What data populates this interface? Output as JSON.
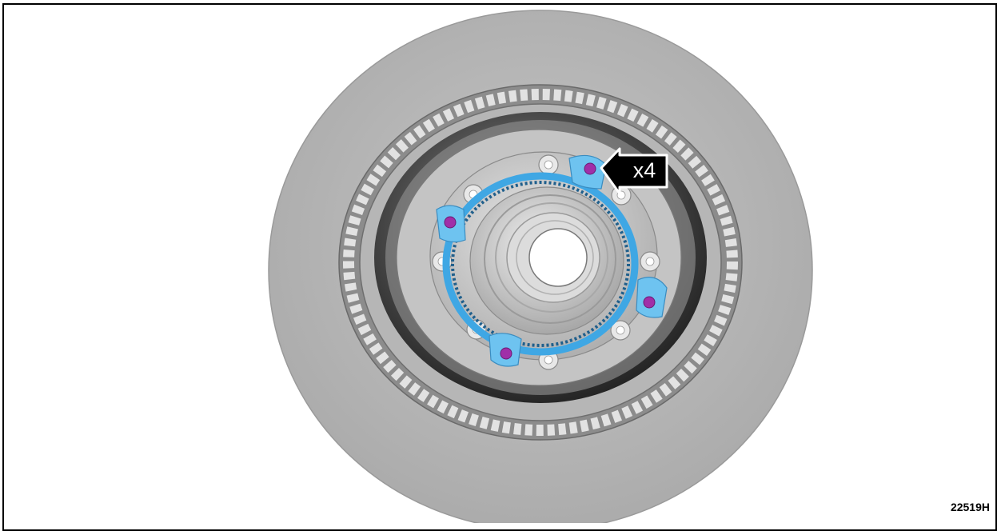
{
  "figure": {
    "callout_label": "x4",
    "figure_id": "22519H"
  },
  "colors": {
    "rotor": "#b8b8b8",
    "hub": "#d6d6d6",
    "sensor_ring": "#3fa7e4",
    "sensor_tab": "#6ec3f0",
    "bolt_highlight": "#a02fa8",
    "callout": "#000000"
  }
}
